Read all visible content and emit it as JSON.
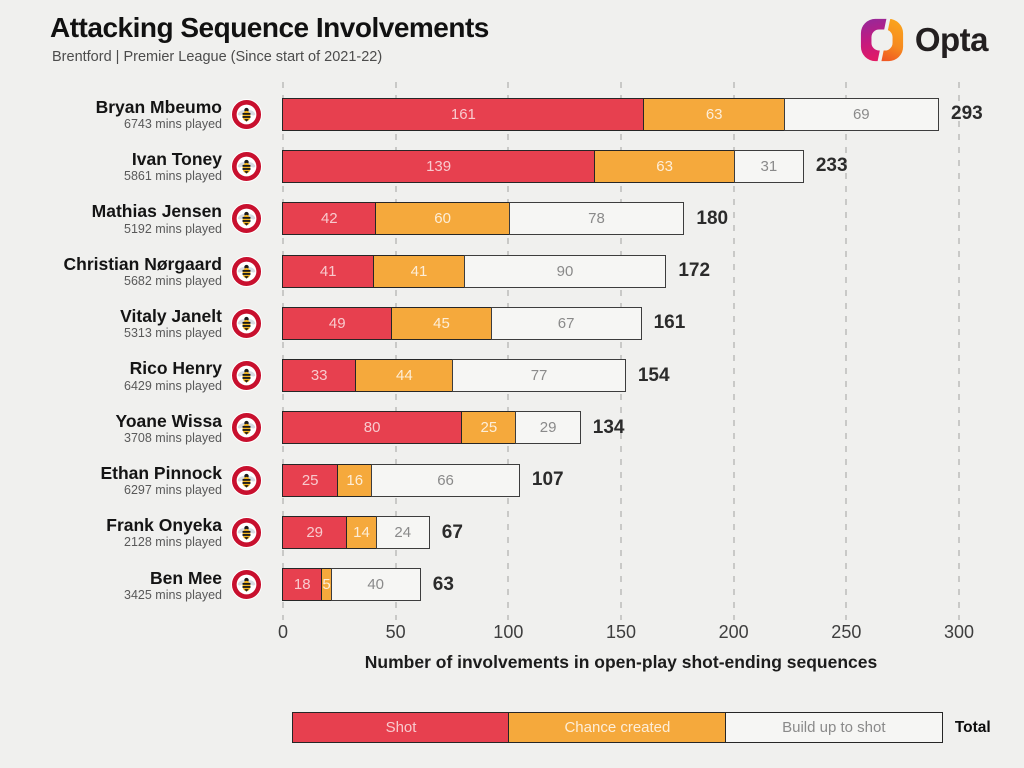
{
  "header": {
    "title": "Attacking Sequence Involvements",
    "subtitle": "Brentford | Premier League (Since start of 2021-22)",
    "brand": "Opta"
  },
  "colors": {
    "shot": "#e7404f",
    "chance_created": "#f5a93c",
    "build_up": "#f6f6f4",
    "segment_border": "#262626",
    "background": "#f0f0ee"
  },
  "chart_data": {
    "type": "bar",
    "orientation": "horizontal",
    "stacked": true,
    "title": "Attacking Sequence Involvements",
    "subtitle": "Brentford | Premier League (Since start of 2021-22)",
    "xlabel": "Number of involvements in open-play shot-ending sequences",
    "xlim": [
      0,
      300
    ],
    "xticks": [
      0,
      50,
      100,
      150,
      200,
      250,
      300
    ],
    "grid": "dashed-vertical",
    "legend_position": "bottom",
    "legend": [
      {
        "label": "Shot",
        "color": "#e7404f"
      },
      {
        "label": "Chance created",
        "color": "#f5a93c"
      },
      {
        "label": "Build up to shot",
        "color": "#f6f6f4"
      }
    ],
    "total_label": "Total",
    "categories": [
      "Bryan Mbeumo",
      "Ivan Toney",
      "Mathias Jensen",
      "Christian Nørgaard",
      "Vitaly Janelt",
      "Rico Henry",
      "Yoane Wissa",
      "Ethan Pinnock",
      "Frank Onyeka",
      "Ben Mee"
    ],
    "players": [
      {
        "name": "Bryan Mbeumo",
        "mins": "6743 mins played",
        "shot": 161,
        "chance_created": 63,
        "build_up": 69,
        "total": 293
      },
      {
        "name": "Ivan Toney",
        "mins": "5861 mins played",
        "shot": 139,
        "chance_created": 63,
        "build_up": 31,
        "total": 233
      },
      {
        "name": "Mathias Jensen",
        "mins": "5192 mins played",
        "shot": 42,
        "chance_created": 60,
        "build_up": 78,
        "total": 180
      },
      {
        "name": "Christian Nørgaard",
        "mins": "5682 mins played",
        "shot": 41,
        "chance_created": 41,
        "build_up": 90,
        "total": 172
      },
      {
        "name": "Vitaly Janelt",
        "mins": "5313 mins played",
        "shot": 49,
        "chance_created": 45,
        "build_up": 67,
        "total": 161
      },
      {
        "name": "Rico Henry",
        "mins": "6429 mins played",
        "shot": 33,
        "chance_created": 44,
        "build_up": 77,
        "total": 154
      },
      {
        "name": "Yoane Wissa",
        "mins": "3708 mins played",
        "shot": 80,
        "chance_created": 25,
        "build_up": 29,
        "total": 134
      },
      {
        "name": "Ethan Pinnock",
        "mins": "6297 mins played",
        "shot": 25,
        "chance_created": 16,
        "build_up": 66,
        "total": 107
      },
      {
        "name": "Frank Onyeka",
        "mins": "2128 mins played",
        "shot": 29,
        "chance_created": 14,
        "build_up": 24,
        "total": 67
      },
      {
        "name": "Ben Mee",
        "mins": "3425 mins played",
        "shot": 18,
        "chance_created": 5,
        "build_up": 40,
        "total": 63
      }
    ]
  }
}
